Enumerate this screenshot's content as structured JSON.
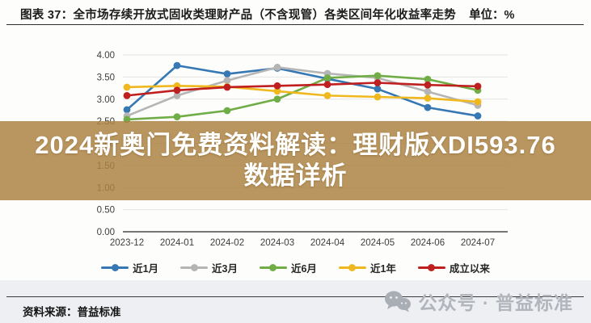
{
  "header": {
    "title": "图表 37：全市场存续开放式固收类理财产品（不含现管）各类区间年化收益率走势",
    "unit": "单位：%"
  },
  "overlay": {
    "line1": "2024新奥门免费资料解读：理财版XDI593.76",
    "line2": "数据详析",
    "background_color": "#ac8140",
    "text_color": "#ffffff"
  },
  "chart_data": {
    "type": "line",
    "title": "全市场存续开放式固收类理财产品（不含现管）各类区间年化收益率走势",
    "ylabel": "",
    "xlabel": "",
    "categories": [
      "2023-12",
      "2024-01",
      "2024-02",
      "2024-03",
      "2024-04",
      "2024-05",
      "2024-06",
      "2024-07"
    ],
    "series": [
      {
        "name": "近1月",
        "color": "#3678b4",
        "values": [
          2.76,
          3.76,
          3.57,
          3.7,
          3.46,
          3.23,
          2.81,
          2.62
        ]
      },
      {
        "name": "近3月",
        "color": "#b5b5b5",
        "values": [
          2.62,
          3.08,
          3.42,
          3.72,
          3.58,
          3.48,
          3.17,
          2.86
        ]
      },
      {
        "name": "近6月",
        "color": "#71ad47",
        "values": [
          2.54,
          2.6,
          2.74,
          3.0,
          3.48,
          3.53,
          3.45,
          3.2
        ]
      },
      {
        "name": "近1年",
        "color": "#f0b81f",
        "values": [
          3.27,
          3.3,
          3.28,
          3.18,
          3.08,
          3.05,
          3.02,
          2.94
        ]
      },
      {
        "name": "成立以来",
        "color": "#bf1f1f",
        "values": [
          3.08,
          3.2,
          3.27,
          3.3,
          3.33,
          3.37,
          3.32,
          3.29
        ]
      }
    ],
    "ylim": [
      0,
      4
    ],
    "ytick_step": 0.5,
    "ytick_format_decimals": 2,
    "grid": true,
    "legend_position": "bottom"
  },
  "footer": {
    "source": "资料来源：普益标准",
    "watermark": "公众号 · 普益标准"
  }
}
